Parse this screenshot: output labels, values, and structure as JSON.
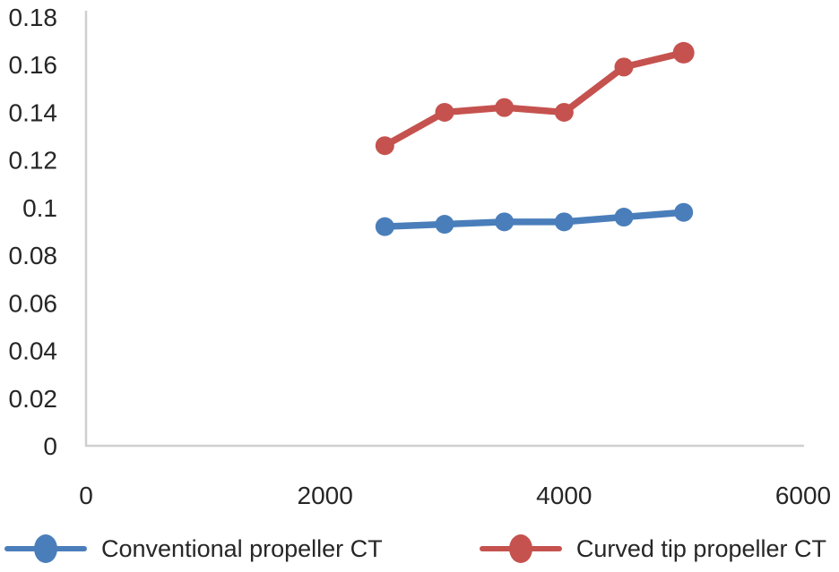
{
  "chart_data": {
    "type": "line",
    "title": "",
    "xlabel": "",
    "ylabel": "",
    "x": [
      2500,
      3000,
      3500,
      4000,
      4500,
      5000
    ],
    "series": [
      {
        "name": "Conventional propeller CT",
        "color": "#4A7EBB",
        "values": [
          0.092,
          0.093,
          0.094,
          0.094,
          0.096,
          0.098
        ]
      },
      {
        "name": "Curved tip propeller CT",
        "color": "#C5524E",
        "values": [
          0.126,
          0.14,
          0.142,
          0.14,
          0.159,
          0.165
        ]
      }
    ],
    "xlim": [
      0,
      6000
    ],
    "ylim": [
      0,
      0.18
    ],
    "x_ticks": [
      0,
      2000,
      4000,
      6000
    ],
    "y_ticks": [
      0,
      0.02,
      0.04,
      0.06,
      0.08,
      0.1,
      0.12,
      0.14,
      0.16,
      0.18
    ],
    "grid": false,
    "legend_position": "bottom",
    "axis_color": "#CFCFCF",
    "text_color": "#262626"
  }
}
